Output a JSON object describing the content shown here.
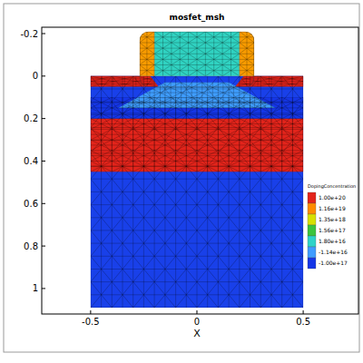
{
  "chart_data": {
    "type": "mesh",
    "title": "mosfet_msh",
    "x_label": "X",
    "xlim": [
      -0.73,
      0.76
    ],
    "ylim": [
      -0.23,
      1.12
    ],
    "xticks": [
      -0.5,
      0,
      0.5
    ],
    "yticks": [
      -0.2,
      0,
      0.2,
      0.4,
      0.6,
      0.8,
      1
    ],
    "regions": [
      {
        "x": [
          -0.5,
          0.5,
          0.5,
          -0.5
        ],
        "y": [
          0,
          0,
          1.09,
          1.09
        ],
        "value": -8e+16
      },
      {
        "x": [
          -0.5,
          0.5,
          0.5,
          -0.5
        ],
        "y": [
          0.1,
          0.1,
          0.2,
          0.2
        ],
        "value": -1e+17
      },
      {
        "x": [
          -0.5,
          0.5,
          0.5,
          -0.5
        ],
        "y": [
          0.2,
          0.2,
          0.45,
          0.45
        ],
        "value": 1e+20
      },
      {
        "x": [
          -0.5,
          -0.22,
          -0.18,
          -0.5
        ],
        "y": [
          0,
          0,
          0.05,
          0.05
        ],
        "value": 1e+20
      },
      {
        "x": [
          0.22,
          0.5,
          0.5,
          0.18
        ],
        "y": [
          0,
          0,
          0.05,
          0.05
        ],
        "value": 1e+20
      },
      {
        "x": [
          -0.37,
          -0.15,
          0.15,
          0.37
        ],
        "y": [
          0.15,
          0.03,
          0.03,
          0.15
        ],
        "value": -1e+16
      },
      {
        "x": [
          -0.2,
          0.2,
          0.2,
          -0.2
        ],
        "y": [
          -0.21,
          -0.21,
          0,
          0
        ],
        "value": 2e+16
      },
      {
        "x": [
          -0.27,
          -0.2,
          -0.2,
          -0.27
        ],
        "y": [
          -0.21,
          -0.21,
          0,
          0
        ],
        "value": 8e+18
      },
      {
        "x": [
          0.2,
          0.27,
          0.27,
          0.2
        ],
        "y": [
          -0.21,
          -0.21,
          0,
          0
        ],
        "value": 8e+18
      }
    ],
    "colorbar": {
      "title": "DopingConcentration",
      "ticks": [
        {
          "value": 1e+20,
          "label": "1.00e+20"
        },
        {
          "value": 1.16e+19,
          "label": "1.16e+19"
        },
        {
          "value": 1.35e+18,
          "label": "1.35e+18"
        },
        {
          "value": 1.56e+17,
          "label": "1.56e+17"
        },
        {
          "value": 1.8e+16,
          "label": "1.80e+16"
        },
        {
          "value": -1.14e+16,
          "label": "-1.14e+16"
        },
        {
          "value": -1e+17,
          "label": "-1.00e+17"
        }
      ]
    }
  }
}
